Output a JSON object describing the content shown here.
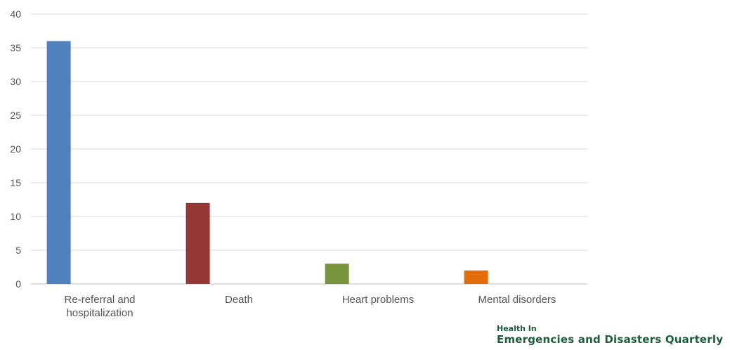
{
  "chart_data": {
    "type": "bar",
    "categories": [
      "Re-referral and hospitalization",
      "Death",
      "Heart problems",
      "Mental disorders"
    ],
    "category_lines": [
      [
        "Re-referral and",
        "hospitalization"
      ],
      [
        "Death"
      ],
      [
        "Heart problems"
      ],
      [
        "Mental disorders"
      ]
    ],
    "values": [
      36,
      12,
      3,
      2
    ],
    "colors": [
      "#4f81bd",
      "#953735",
      "#77933c",
      "#e36c09"
    ],
    "ylim": [
      0,
      40
    ],
    "yticks": [
      "0",
      "5",
      "10",
      "15",
      "20",
      "25",
      "30",
      "35",
      "40"
    ],
    "grid": true,
    "legend": "none"
  },
  "logo": {
    "line1": "Health In",
    "line2": "Emergencies and Disasters Quarterly"
  }
}
